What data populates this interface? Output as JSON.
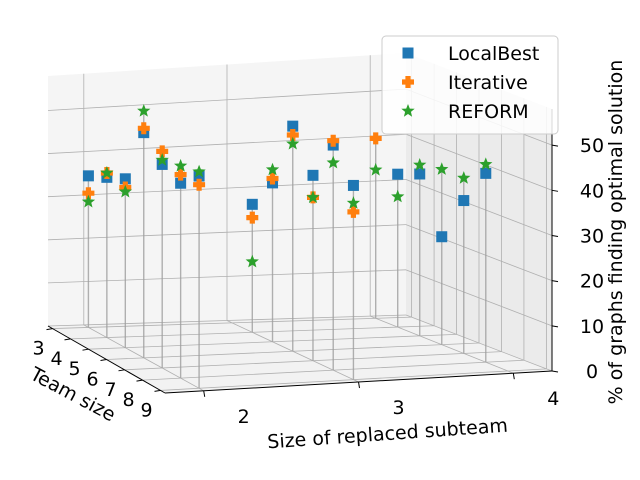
{
  "chart_data": {
    "type": "scatter-3d",
    "title": "",
    "xlabel": "Size of replaced subteam",
    "ylabel": "Team size",
    "zlabel": "% of graphs finding optimal solution",
    "x_ticks": [
      "2",
      "3",
      "4"
    ],
    "y_ticks": [
      "3",
      "4",
      "5",
      "6",
      "7",
      "8",
      "9"
    ],
    "z_ticks": [
      "0",
      "10",
      "20",
      "30",
      "40",
      "50"
    ],
    "zlim": [
      0,
      58
    ],
    "legend_position": "top-right",
    "series": [
      {
        "name": "LocalBest",
        "marker": "square",
        "color": "#1f77b4",
        "points": [
          {
            "subteam": 2,
            "team": 3,
            "value": 35
          },
          {
            "subteam": 2,
            "team": 4,
            "value": 37
          },
          {
            "subteam": 2,
            "team": 5,
            "value": 39
          },
          {
            "subteam": 2,
            "team": 6,
            "value": 52
          },
          {
            "subteam": 2,
            "team": 7,
            "value": 47
          },
          {
            "subteam": 2,
            "team": 8,
            "value": 45
          },
          {
            "subteam": 2,
            "team": 9,
            "value": 49
          },
          {
            "subteam": 3,
            "team": 4,
            "value": 29
          },
          {
            "subteam": 3,
            "team": 5,
            "value": 36
          },
          {
            "subteam": 3,
            "team": 6,
            "value": 51
          },
          {
            "subteam": 3,
            "team": 7,
            "value": 42
          },
          {
            "subteam": 3,
            "team": 8,
            "value": 51
          },
          {
            "subteam": 3,
            "team": 9,
            "value": 44
          },
          {
            "subteam": 4,
            "team": 4,
            "value": 34
          },
          {
            "subteam": 4,
            "team": 5,
            "value": 36
          },
          {
            "subteam": 4,
            "team": 6,
            "value": 24
          },
          {
            "subteam": 4,
            "team": 7,
            "value": 34
          },
          {
            "subteam": 4,
            "team": 8,
            "value": 42
          }
        ]
      },
      {
        "name": "Iterative",
        "marker": "plus",
        "color": "#ff7f0e",
        "points": [
          {
            "subteam": 2,
            "team": 3,
            "value": 31
          },
          {
            "subteam": 2,
            "team": 4,
            "value": 38
          },
          {
            "subteam": 2,
            "team": 5,
            "value": 37
          },
          {
            "subteam": 2,
            "team": 6,
            "value": 53
          },
          {
            "subteam": 2,
            "team": 7,
            "value": 50
          },
          {
            "subteam": 2,
            "team": 8,
            "value": 47
          },
          {
            "subteam": 2,
            "team": 9,
            "value": 47
          },
          {
            "subteam": 3,
            "team": 4,
            "value": 26
          },
          {
            "subteam": 3,
            "team": 5,
            "value": 37
          },
          {
            "subteam": 3,
            "team": 6,
            "value": 49
          },
          {
            "subteam": 3,
            "team": 7,
            "value": 37
          },
          {
            "subteam": 3,
            "team": 8,
            "value": 52
          },
          {
            "subteam": 3,
            "team": 9,
            "value": 38
          },
          {
            "subteam": 4,
            "team": 3,
            "value": 40
          }
        ]
      },
      {
        "name": "REFORM",
        "marker": "star",
        "color": "#2ca02c",
        "points": [
          {
            "subteam": 2,
            "team": 3,
            "value": 29
          },
          {
            "subteam": 2,
            "team": 4,
            "value": 38
          },
          {
            "subteam": 2,
            "team": 5,
            "value": 36
          },
          {
            "subteam": 2,
            "team": 6,
            "value": 57
          },
          {
            "subteam": 2,
            "team": 7,
            "value": 48
          },
          {
            "subteam": 2,
            "team": 8,
            "value": 49
          },
          {
            "subteam": 2,
            "team": 9,
            "value": 50
          },
          {
            "subteam": 3,
            "team": 4,
            "value": 16
          },
          {
            "subteam": 3,
            "team": 5,
            "value": 39
          },
          {
            "subteam": 3,
            "team": 6,
            "value": 47
          },
          {
            "subteam": 3,
            "team": 7,
            "value": 37
          },
          {
            "subteam": 3,
            "team": 8,
            "value": 47
          },
          {
            "subteam": 3,
            "team": 9,
            "value": 40
          },
          {
            "subteam": 4,
            "team": 3,
            "value": 33
          },
          {
            "subteam": 4,
            "team": 4,
            "value": 29
          },
          {
            "subteam": 4,
            "team": 5,
            "value": 38
          },
          {
            "subteam": 4,
            "team": 6,
            "value": 39
          },
          {
            "subteam": 4,
            "team": 7,
            "value": 39
          },
          {
            "subteam": 4,
            "team": 8,
            "value": 44
          }
        ]
      }
    ]
  }
}
